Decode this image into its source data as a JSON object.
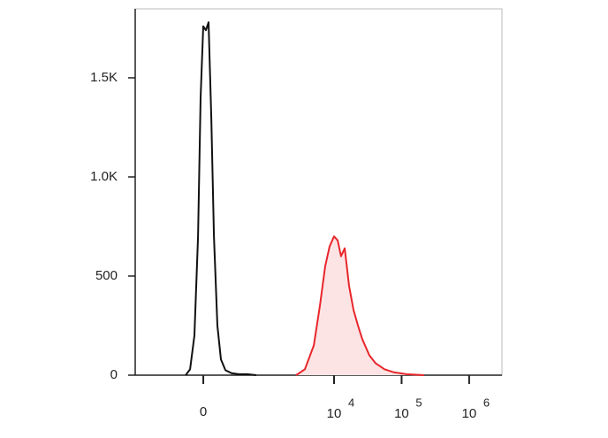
{
  "chart_data": {
    "type": "histogram-overlay",
    "xscale": "biexponential",
    "xlim": [
      -1170,
      3060000
    ],
    "ylim": [
      0,
      1848
    ],
    "xticks": [
      0,
      {
        "value": 10000,
        "label": "10",
        "exponent": "4"
      },
      {
        "value": 100000,
        "label": "10",
        "exponent": "5"
      },
      {
        "value": 1000000,
        "label": "10",
        "exponent": "6"
      }
    ],
    "yticks": [
      0,
      500,
      {
        "value": 1000,
        "label": "1.0K"
      },
      {
        "value": 1500,
        "label": "1.5K"
      }
    ],
    "series": [
      {
        "color": "#111111",
        "x": [
          -148,
          -108,
          -71,
          -42,
          -21,
          0,
          21,
          42,
          64,
          86,
          116,
          148,
          192,
          260,
          353,
          494,
          684
        ],
        "values": [
          0,
          30,
          200,
          700,
          1400,
          1760,
          1740,
          1780,
          1300,
          700,
          250,
          80,
          25,
          10,
          5,
          5,
          0
        ]
      },
      {
        "color": "#e8262b",
        "fill": "#fde4e4",
        "x": [
          2738,
          3700,
          5010,
          6180,
          7400,
          8600,
          10000,
          11300,
          12700,
          14400,
          16700,
          19400,
          22600,
          26300,
          33400,
          41300,
          55800,
          75400,
          118000,
          216000
        ],
        "values": [
          0,
          30,
          150,
          350,
          550,
          650,
          700,
          680,
          600,
          640,
          450,
          330,
          250,
          180,
          100,
          60,
          30,
          15,
          5,
          0
        ]
      }
    ]
  }
}
